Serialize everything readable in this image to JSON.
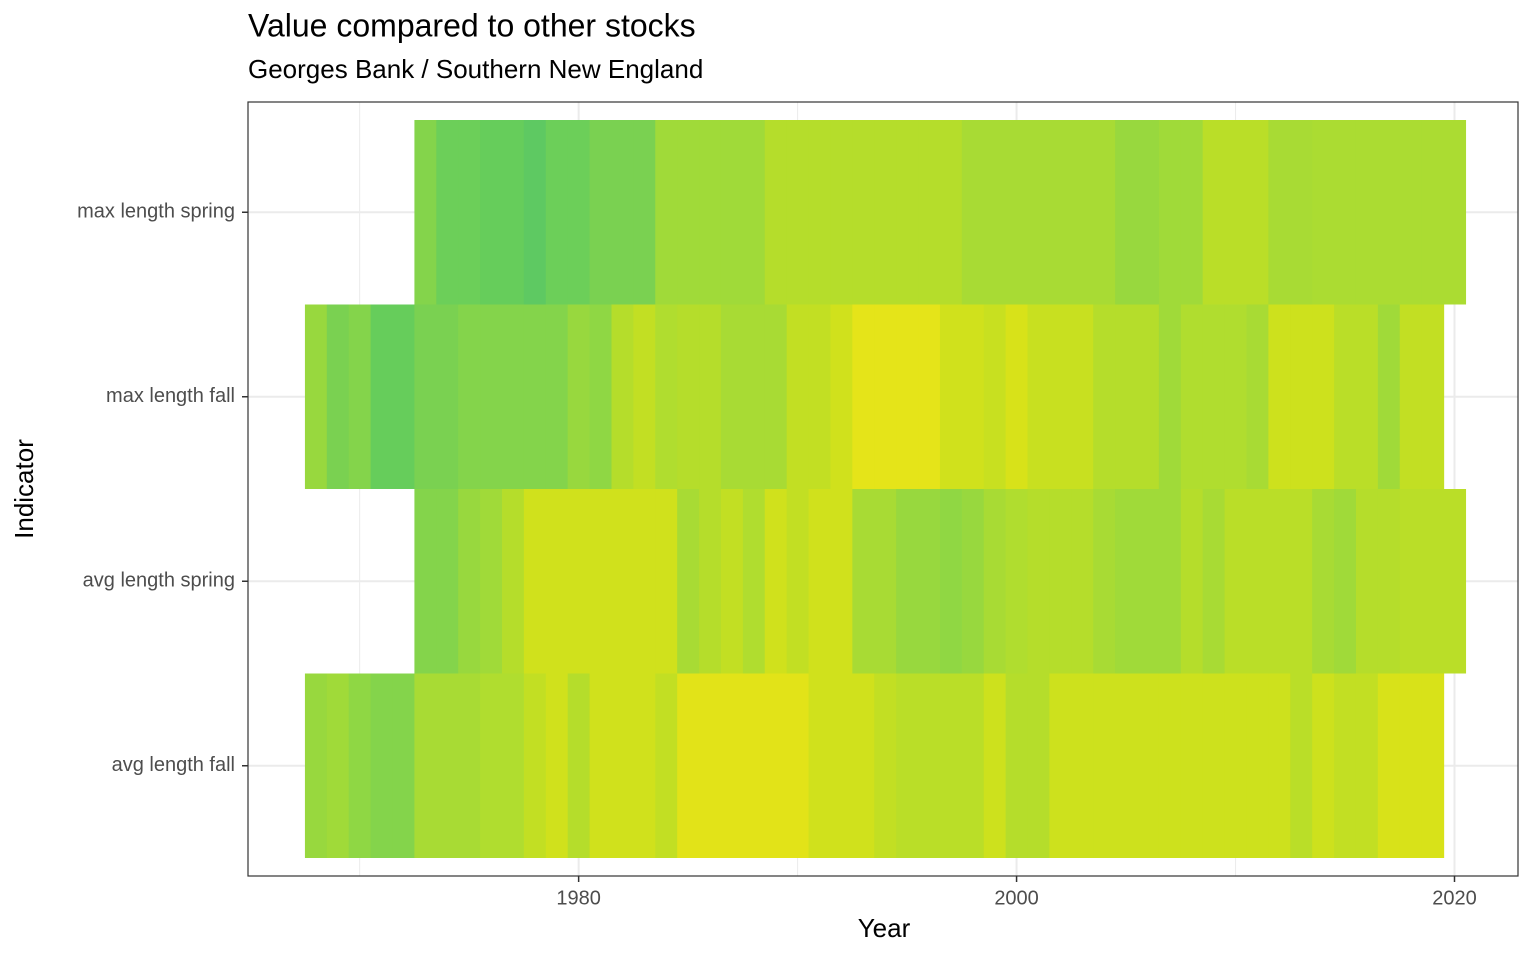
{
  "chart_data": {
    "type": "heatmap",
    "title": "Value compared to other stocks",
    "subtitle": "Georges Bank / Southern New England",
    "x_label": "Year",
    "y_label": "Indicator",
    "categories": [
      "avg length fall",
      "avg length spring",
      "max length fall",
      "max length spring"
    ],
    "xlim": [
      1964.9,
      2022.9
    ],
    "xticks": [
      1980,
      2000,
      2020
    ],
    "xminor": [
      1970,
      1990,
      2010
    ],
    "grid": true,
    "series": [
      {
        "x": [
          1968,
          1969,
          1970,
          1971,
          1972,
          1973,
          1974,
          1975,
          1976,
          1977,
          1978,
          1979,
          1980,
          1981,
          1982,
          1983,
          1984,
          1985,
          1986,
          1987,
          1988,
          1989,
          1990,
          1991,
          1992,
          1993,
          1994,
          1995,
          1996,
          1997,
          1998,
          1999,
          2000,
          2001,
          2002,
          2003,
          2004,
          2005,
          2006,
          2007,
          2008,
          2009,
          2010,
          2011,
          2012,
          2013,
          2014,
          2015,
          2016,
          2017,
          2018,
          2019
        ],
        "colors": [
          "#98d83e",
          "#a0da39",
          "#8fd744",
          "#84d44b",
          "#84d44b",
          "#a8db34",
          "#a8db34",
          "#a8db34",
          "#b0dd2f",
          "#b0dd2f",
          "#c2df23",
          "#d0e11c",
          "#b5dd2b",
          "#d0e11c",
          "#d0e11c",
          "#d0e11c",
          "#c2df23",
          "#e2e318",
          "#e2e318",
          "#e2e318",
          "#e2e318",
          "#e2e318",
          "#e2e318",
          "#d0e11c",
          "#d0e11c",
          "#d0e11c",
          "#c2df23",
          "#bade28",
          "#bade28",
          "#bade28",
          "#bade28",
          "#cde11d",
          "#b5dd2b",
          "#b5dd2b",
          "#cde11d",
          "#cde11d",
          "#cde11d",
          "#cde11d",
          "#cde11d",
          "#cde11d",
          "#cde11d",
          "#cde11d",
          "#cde11d",
          "#cde11d",
          "#cde11d",
          "#bade28",
          "#cde11d",
          "#c2df23",
          "#c2df23",
          "#d8e219",
          "#d8e219",
          "#d8e219"
        ]
      },
      {
        "x": [
          1973,
          1974,
          1975,
          1976,
          1977,
          1978,
          1979,
          1980,
          1981,
          1982,
          1983,
          1984,
          1985,
          1986,
          1987,
          1988,
          1989,
          1990,
          1991,
          1992,
          1993,
          1994,
          1995,
          1996,
          1997,
          1998,
          1999,
          2000,
          2001,
          2002,
          2003,
          2004,
          2005,
          2006,
          2007,
          2008,
          2009,
          2010,
          2011,
          2012,
          2013,
          2014,
          2015,
          2016,
          2017,
          2018,
          2019,
          2020
        ],
        "colors": [
          "#84d44b",
          "#84d44b",
          "#98d83e",
          "#a0da39",
          "#b5dd2b",
          "#d0e11c",
          "#d0e11c",
          "#d0e11c",
          "#d0e11c",
          "#d0e11c",
          "#d0e11c",
          "#d0e11c",
          "#a8db34",
          "#b5dd2b",
          "#c2df23",
          "#b0dd2f",
          "#d0e11c",
          "#c2df23",
          "#d0e11c",
          "#d0e11c",
          "#a8db34",
          "#a8db34",
          "#98d83e",
          "#98d83e",
          "#90d743",
          "#98d83e",
          "#a8db34",
          "#b0dd2f",
          "#b5dd2b",
          "#b5dd2b",
          "#b5dd2b",
          "#a8db34",
          "#a0da39",
          "#a0da39",
          "#a0da39",
          "#b5dd2b",
          "#a8db34",
          "#bade28",
          "#bade28",
          "#bade28",
          "#bade28",
          "#a8db34",
          "#a0da39",
          "#b5dd2b",
          "#b5dd2b",
          "#bade28",
          "#bade28",
          "#bade28"
        ]
      },
      {
        "x": [
          1968,
          1969,
          1970,
          1971,
          1972,
          1973,
          1974,
          1975,
          1976,
          1977,
          1978,
          1979,
          1980,
          1981,
          1982,
          1983,
          1984,
          1985,
          1986,
          1987,
          1988,
          1989,
          1990,
          1991,
          1992,
          1993,
          1994,
          1995,
          1996,
          1997,
          1998,
          1999,
          2000,
          2001,
          2002,
          2003,
          2004,
          2005,
          2006,
          2007,
          2008,
          2009,
          2010,
          2011,
          2012,
          2013,
          2014,
          2015,
          2016,
          2017,
          2018,
          2019
        ],
        "colors": [
          "#98d83e",
          "#7ad151",
          "#84d44b",
          "#66cd5b",
          "#66cd5b",
          "#7ad151",
          "#7ad151",
          "#84d44b",
          "#84d44b",
          "#84d44b",
          "#84d44b",
          "#84d44b",
          "#98d83e",
          "#8fd744",
          "#b5dd2b",
          "#c2df23",
          "#b0dd2f",
          "#b5dd2b",
          "#b5dd2b",
          "#a8db34",
          "#a8db34",
          "#a8db34",
          "#c2df23",
          "#c2df23",
          "#d0e11c",
          "#e5e419",
          "#e5e419",
          "#e5e419",
          "#e5e419",
          "#d0e11c",
          "#d0e11c",
          "#c8e020",
          "#d8e219",
          "#c8e020",
          "#c8e020",
          "#c8e020",
          "#b5dd2b",
          "#b5dd2b",
          "#b5dd2b",
          "#a0da39",
          "#b0dd2f",
          "#b0dd2f",
          "#b0dd2f",
          "#a8db34",
          "#cde11d",
          "#cde11d",
          "#cde11d",
          "#bade28",
          "#bade28",
          "#a0da39",
          "#c2df23",
          "#c2df23"
        ]
      },
      {
        "x": [
          1973,
          1974,
          1975,
          1976,
          1977,
          1978,
          1979,
          1980,
          1981,
          1982,
          1983,
          1984,
          1985,
          1986,
          1987,
          1988,
          1989,
          1990,
          1991,
          1992,
          1993,
          1994,
          1995,
          1996,
          1997,
          1998,
          1999,
          2000,
          2001,
          2002,
          2003,
          2004,
          2005,
          2006,
          2007,
          2008,
          2009,
          2010,
          2011,
          2012,
          2013,
          2014,
          2015,
          2016,
          2017,
          2018,
          2019,
          2020
        ],
        "colors": [
          "#84d44b",
          "#6ccf59",
          "#6ccf59",
          "#66cd5b",
          "#66cd5b",
          "#5ec962",
          "#6ccf59",
          "#6ccf59",
          "#7ad151",
          "#7ad151",
          "#7ad151",
          "#a0da39",
          "#a0da39",
          "#a0da39",
          "#a0da39",
          "#a0da39",
          "#b5dd2b",
          "#b5dd2b",
          "#b5dd2b",
          "#b5dd2b",
          "#b5dd2b",
          "#b5dd2b",
          "#b5dd2b",
          "#b5dd2b",
          "#b5dd2b",
          "#a8db34",
          "#a8db34",
          "#a8db34",
          "#a8db34",
          "#a8db34",
          "#a8db34",
          "#a8db34",
          "#98d83e",
          "#98d83e",
          "#a0da39",
          "#a0da39",
          "#bade28",
          "#bade28",
          "#bade28",
          "#a8db34",
          "#a8db34",
          "#abdc32",
          "#abdc32",
          "#abdc32",
          "#abdc32",
          "#abdc32",
          "#abdc32",
          "#abdc32"
        ]
      }
    ]
  }
}
